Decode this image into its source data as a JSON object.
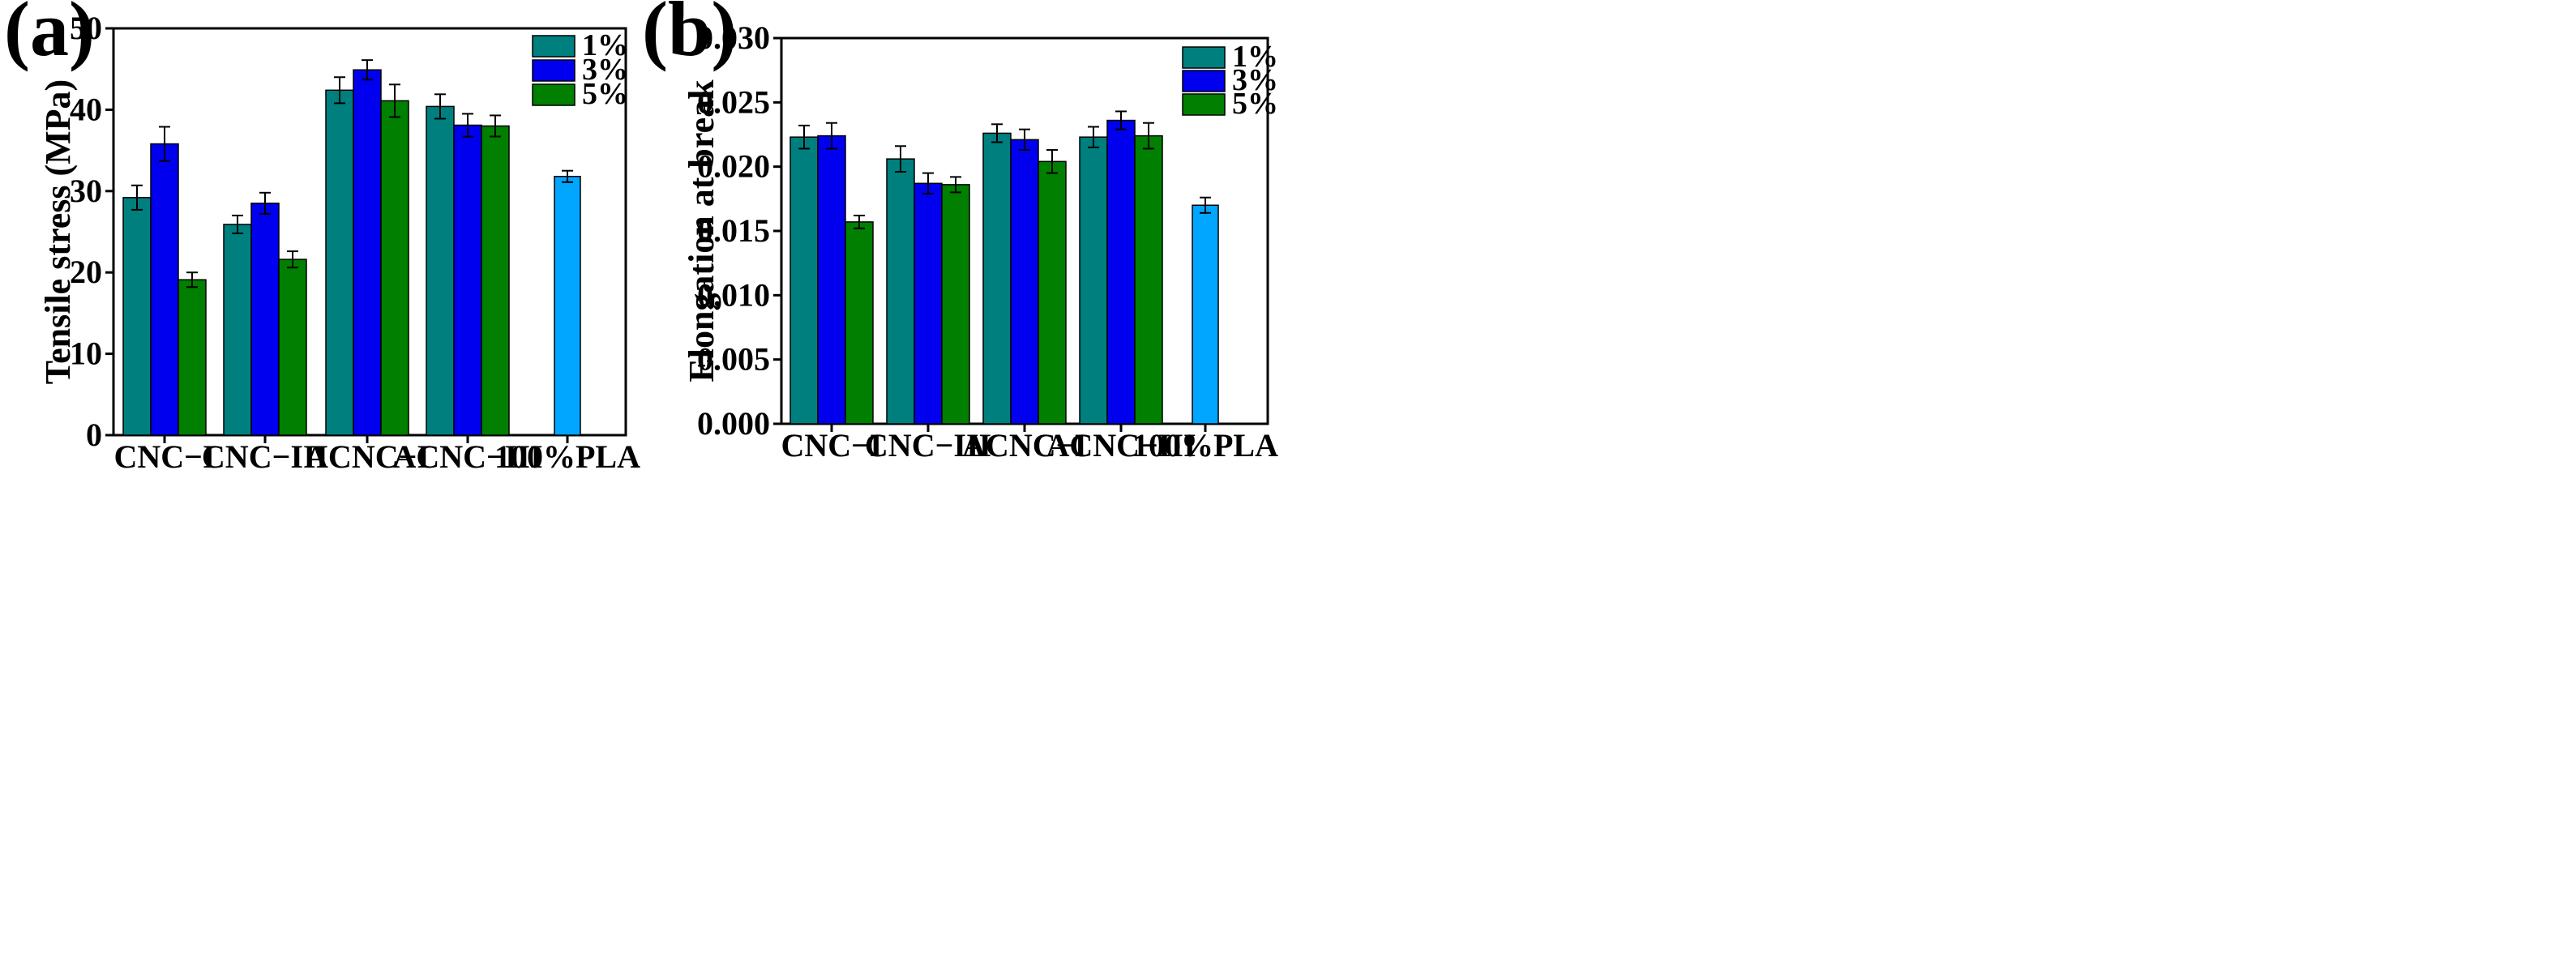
{
  "colors": {
    "pct1": "#007f7f",
    "pct3": "#0000ee",
    "pct5": "#007f00",
    "pla": "#00a6ff"
  },
  "chart_data": [
    {
      "panel_label": "(a)",
      "type": "bar",
      "ylabel": "Tensile stress (MPa)",
      "xlabel": "",
      "ylim": [
        0,
        50
      ],
      "yticks": [
        0,
        10,
        20,
        30,
        40,
        50
      ],
      "ytick_labels": [
        "0",
        "10",
        "20",
        "30",
        "40",
        "50"
      ],
      "categories": [
        "CNC−I",
        "CNC−III",
        "ACNC−I",
        "ACNC−III",
        "100%PLA"
      ],
      "legend_position": "top-right",
      "series": [
        {
          "name": "1%",
          "color_key": "pct1",
          "values": [
            29.2,
            25.9,
            42.4,
            40.4,
            null
          ],
          "errors": [
            1.5,
            1.1,
            1.6,
            1.5,
            null
          ]
        },
        {
          "name": "3%",
          "color_key": "pct3",
          "values": [
            35.8,
            28.5,
            44.9,
            38.1,
            null
          ],
          "errors": [
            2.1,
            1.3,
            1.2,
            1.4,
            null
          ]
        },
        {
          "name": "5%",
          "color_key": "pct5",
          "values": [
            19.1,
            21.6,
            41.1,
            38.0,
            null
          ],
          "errors": [
            0.9,
            1.0,
            2.0,
            1.3,
            null
          ]
        }
      ],
      "single": {
        "category": "100%PLA",
        "value": 31.8,
        "error": 0.7,
        "color_key": "pla"
      }
    },
    {
      "panel_label": "(b)",
      "type": "bar",
      "ylabel": "Elongation at break",
      "xlabel": "",
      "ylim": [
        0,
        0.03
      ],
      "yticks": [
        0,
        0.005,
        0.01,
        0.015,
        0.02,
        0.025,
        0.03
      ],
      "ytick_labels": [
        "0.000",
        "0.005",
        "0.010",
        "0.015",
        "0.020",
        "0.025",
        "0.030"
      ],
      "categories": [
        "CNC−I",
        "CNC−III",
        "ACNC−I",
        "ACNC−III",
        "100%PLA"
      ],
      "legend_position": "top-right",
      "series": [
        {
          "name": "1%",
          "color_key": "pct1",
          "values": [
            0.0223,
            0.0206,
            0.0226,
            0.0223,
            null
          ],
          "errors": [
            0.0009,
            0.001,
            0.0007,
            0.0008,
            null
          ]
        },
        {
          "name": "3%",
          "color_key": "pct3",
          "values": [
            0.0224,
            0.0187,
            0.0221,
            0.0236,
            null
          ],
          "errors": [
            0.001,
            0.0008,
            0.0008,
            0.0007,
            null
          ]
        },
        {
          "name": "5%",
          "color_key": "pct5",
          "values": [
            0.0157,
            0.0186,
            0.0204,
            0.0224,
            null
          ],
          "errors": [
            0.0005,
            0.0006,
            0.0009,
            0.001,
            null
          ]
        }
      ],
      "single": {
        "category": "100%PLA",
        "value": 0.017,
        "error": 0.0006,
        "color_key": "pla"
      }
    }
  ]
}
